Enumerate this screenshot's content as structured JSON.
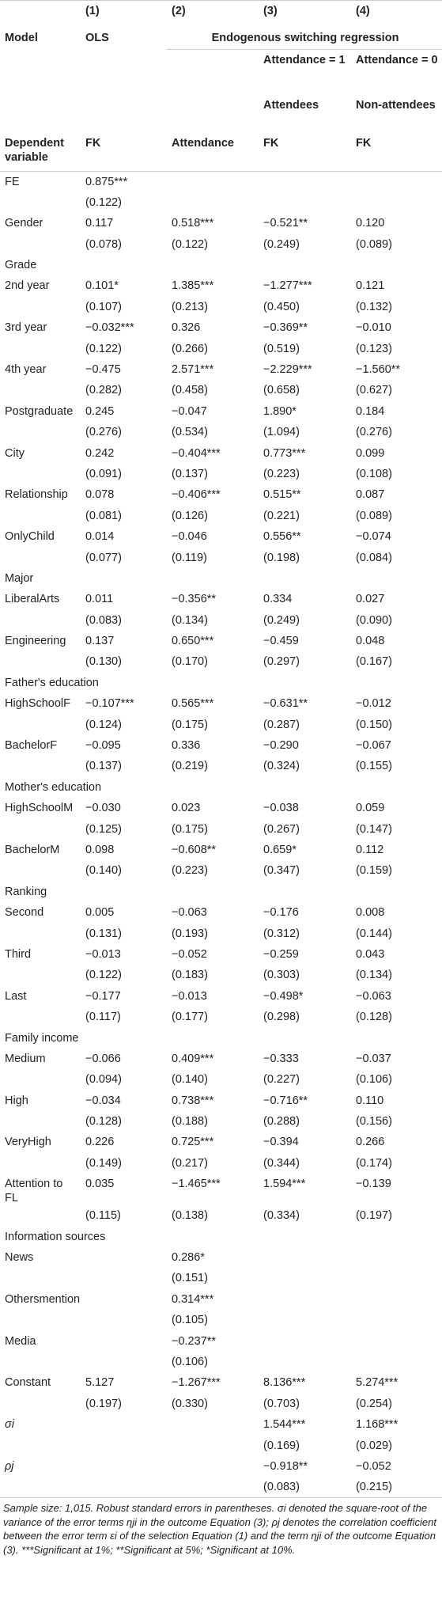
{
  "header": {
    "col_numbers": [
      "(1)",
      "(2)",
      "(3)",
      "(4)"
    ],
    "model": "Model",
    "ols": "OLS",
    "esr": "Endogenous switching regression",
    "att1": "Attendance = 1",
    "att0": "Attendance = 0",
    "attendees": "Attendees",
    "nonattendees": "Non-attendees",
    "dep_var": "Dependent variable",
    "dep": [
      "FK",
      "Attendance",
      "FK",
      "FK"
    ]
  },
  "rows": [
    {
      "label": "FE",
      "coef": [
        "0.875***",
        null,
        null,
        null
      ],
      "se": [
        "(0.122)",
        null,
        null,
        null
      ]
    },
    {
      "label": "Gender",
      "coef": [
        "0.117",
        "0.518***",
        "−0.521**",
        "0.120"
      ],
      "se": [
        "(0.078)",
        "(0.122)",
        "(0.249)",
        "(0.089)"
      ]
    },
    {
      "heading": "Grade"
    },
    {
      "label": "2nd year",
      "coef": [
        "0.101*",
        "1.385***",
        "−1.277***",
        "0.121"
      ],
      "se": [
        "(0.107)",
        "(0.213)",
        "(0.450)",
        "(0.132)"
      ]
    },
    {
      "label": "3rd year",
      "coef": [
        "−0.032***",
        "0.326",
        "−0.369**",
        "−0.010"
      ],
      "se": [
        "(0.122)",
        "(0.266)",
        "(0.519)",
        "(0.123)"
      ]
    },
    {
      "label": "4th year",
      "coef": [
        "−0.475",
        "2.571***",
        "−2.229***",
        "−1.560**"
      ],
      "se": [
        "(0.282)",
        "(0.458)",
        "(0.658)",
        "(0.627)"
      ]
    },
    {
      "label": "Postgraduate",
      "coef": [
        "0.245",
        "−0.047",
        "1.890*",
        "0.184"
      ],
      "se": [
        "(0.276)",
        "(0.534)",
        "(1.094)",
        "(0.276)"
      ]
    },
    {
      "label": "City",
      "coef": [
        "0.242",
        "−0.404***",
        "0.773***",
        "0.099"
      ],
      "se": [
        "(0.091)",
        "(0.137)",
        "(0.223)",
        "(0.108)"
      ]
    },
    {
      "label": "Relationship",
      "coef": [
        "0.078",
        "−0.406***",
        "0.515**",
        "0.087"
      ],
      "se": [
        "(0.081)",
        "(0.126)",
        "(0.221)",
        "(0.089)"
      ]
    },
    {
      "label": "OnlyChild",
      "coef": [
        "0.014",
        "−0.046",
        "0.556**",
        "−0.074"
      ],
      "se": [
        "(0.077)",
        "(0.119)",
        "(0.198)",
        "(0.084)"
      ]
    },
    {
      "heading": "Major"
    },
    {
      "label": "LiberalArts",
      "coef": [
        "0.011",
        "−0.356**",
        "0.334",
        "0.027"
      ],
      "se": [
        "(0.083)",
        "(0.134)",
        "(0.249)",
        "(0.090)"
      ]
    },
    {
      "label": "Engineering",
      "coef": [
        "0.137",
        "0.650***",
        "−0.459",
        "0.048"
      ],
      "se": [
        "(0.130)",
        "(0.170)",
        "(0.297)",
        "(0.167)"
      ]
    },
    {
      "heading": "Father's education"
    },
    {
      "label": "HighSchoolF",
      "coef": [
        "−0.107***",
        "0.565***",
        "−0.631**",
        "−0.012"
      ],
      "se": [
        "(0.124)",
        "(0.175)",
        "(0.287)",
        "(0.150)"
      ]
    },
    {
      "label": "BachelorF",
      "coef": [
        "−0.095",
        "0.336",
        "−0.290",
        "−0.067"
      ],
      "se": [
        "(0.137)",
        "(0.219)",
        "(0.324)",
        "(0.155)"
      ]
    },
    {
      "heading": "Mother's education"
    },
    {
      "label": "HighSchoolM",
      "coef": [
        "−0.030",
        "0.023",
        "−0.038",
        "0.059"
      ],
      "se": [
        "(0.125)",
        "(0.175)",
        "(0.267)",
        "(0.147)"
      ]
    },
    {
      "label": "BachelorM",
      "coef": [
        "0.098",
        "−0.608**",
        "0.659*",
        "0.112"
      ],
      "se": [
        "(0.140)",
        "(0.223)",
        "(0.347)",
        "(0.159)"
      ]
    },
    {
      "heading": "Ranking"
    },
    {
      "label": "Second",
      "coef": [
        "0.005",
        "−0.063",
        "−0.176",
        "0.008"
      ],
      "se": [
        "(0.131)",
        "(0.193)",
        "(0.312)",
        "(0.144)"
      ]
    },
    {
      "label": "Third",
      "coef": [
        "−0.013",
        "−0.052",
        "−0.259",
        "0.043"
      ],
      "se": [
        "(0.122)",
        "(0.183)",
        "(0.303)",
        "(0.134)"
      ]
    },
    {
      "label": "Last",
      "coef": [
        "−0.177",
        "−0.013",
        "−0.498*",
        "−0.063"
      ],
      "se": [
        "(0.117)",
        "(0.177)",
        "(0.298)",
        "(0.128)"
      ]
    },
    {
      "heading": "Family income"
    },
    {
      "label": "Medium",
      "coef": [
        "−0.066",
        "0.409***",
        "−0.333",
        "−0.037"
      ],
      "se": [
        "(0.094)",
        "(0.140)",
        "(0.227)",
        "(0.106)"
      ]
    },
    {
      "label": "High",
      "coef": [
        "−0.034",
        "0.738***",
        "−0.716**",
        "0.110"
      ],
      "se": [
        "(0.128)",
        "(0.188)",
        "(0.288)",
        "(0.156)"
      ]
    },
    {
      "label": "VeryHigh",
      "coef": [
        "0.226",
        "0.725***",
        "−0.394",
        "0.266"
      ],
      "se": [
        "(0.149)",
        "(0.217)",
        "(0.344)",
        "(0.174)"
      ]
    },
    {
      "label": "Attention to FL",
      "coef": [
        "0.035",
        "−1.465***",
        "1.594***",
        "−0.139"
      ],
      "se": [
        "(0.115)",
        "(0.138)",
        "(0.334)",
        "(0.197)"
      ]
    },
    {
      "heading": "Information sources"
    },
    {
      "label": "News",
      "coef": [
        null,
        "0.286*",
        null,
        null
      ],
      "se": [
        null,
        "(0.151)",
        null,
        null
      ]
    },
    {
      "label": "Othersmention",
      "coef": [
        null,
        "0.314***",
        null,
        null
      ],
      "se": [
        null,
        "(0.105)",
        null,
        null
      ]
    },
    {
      "label": "Media",
      "coef": [
        null,
        "−0.237**",
        null,
        null
      ],
      "se": [
        null,
        "(0.106)",
        null,
        null
      ]
    },
    {
      "label": "Constant",
      "coef": [
        "5.127",
        "−1.267***",
        "8.136***",
        "5.274***"
      ],
      "se": [
        "(0.197)",
        "(0.330)",
        "(0.703)",
        "(0.254)"
      ]
    },
    {
      "label": "σi",
      "italic": true,
      "coef": [
        null,
        null,
        "1.544***",
        "1.168***"
      ],
      "se": [
        null,
        null,
        "(0.169)",
        "(0.029)"
      ]
    },
    {
      "label": "ρj",
      "italic": true,
      "coef": [
        null,
        null,
        "−0.918**",
        "−0.052"
      ],
      "se": [
        null,
        null,
        "(0.083)",
        "(0.215)"
      ]
    }
  ],
  "footnote": "Sample size: 1,015. Robust standard errors in parentheses. σi denoted the square-root of the variance of the error terms ηji in the outcome Equation (3); ρj denotes the correlation coefficient between the error term εi of the selection Equation (1) and the term ηji of the outcome Equation (3). ***Significant at 1%; **Significant at 5%; *Significant at 10%."
}
